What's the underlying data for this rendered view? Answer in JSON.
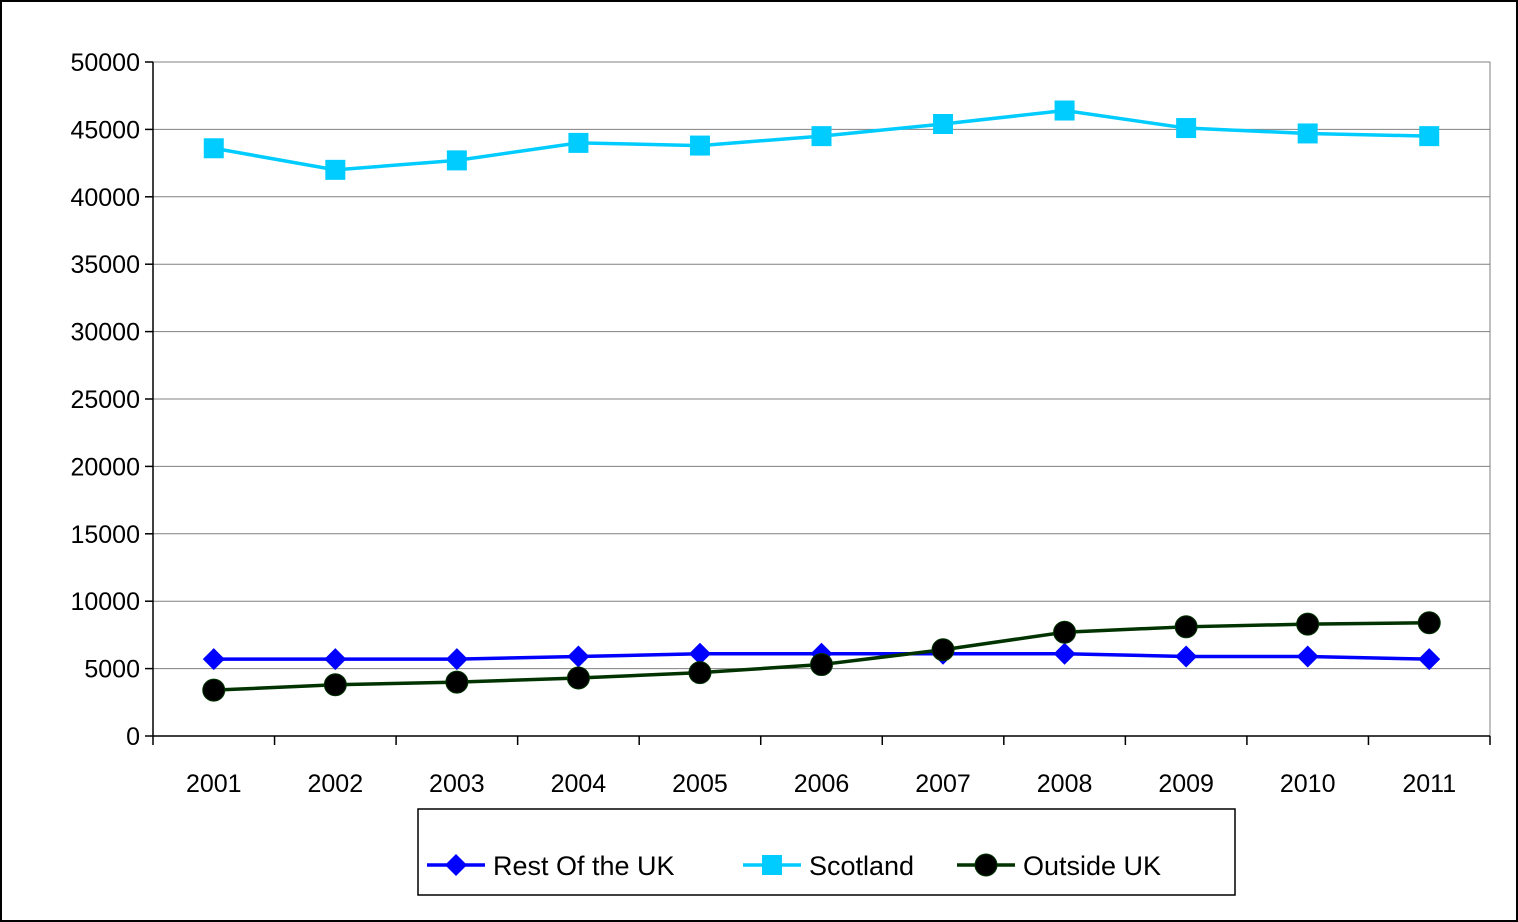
{
  "chart_data": {
    "type": "line",
    "categories": [
      "2001",
      "2002",
      "2003",
      "2004",
      "2005",
      "2006",
      "2007",
      "2008",
      "2009",
      "2010",
      "2011"
    ],
    "series": [
      {
        "name": "Rest Of the UK",
        "color": "#0000FF",
        "marker": "diamond",
        "values": [
          5700,
          5700,
          5700,
          5900,
          6100,
          6100,
          6100,
          6100,
          5900,
          5900,
          5700
        ]
      },
      {
        "name": "Scotland",
        "color": "#00CCFF",
        "marker": "square",
        "values": [
          43600,
          42000,
          42700,
          44000,
          43800,
          44500,
          45400,
          46400,
          45100,
          44700,
          44500
        ]
      },
      {
        "name": "Outside UK",
        "color": "#003300",
        "marker": "circle",
        "values": [
          3400,
          3800,
          4000,
          4300,
          4700,
          5300,
          6400,
          7700,
          8100,
          8300,
          8400
        ]
      }
    ],
    "y_ticks": [
      "0",
      "5000",
      "10000",
      "15000",
      "20000",
      "25000",
      "30000",
      "35000",
      "40000",
      "45000",
      "50000"
    ],
    "ylim": [
      0,
      50000
    ],
    "grid": true,
    "legend": "bottom"
  }
}
